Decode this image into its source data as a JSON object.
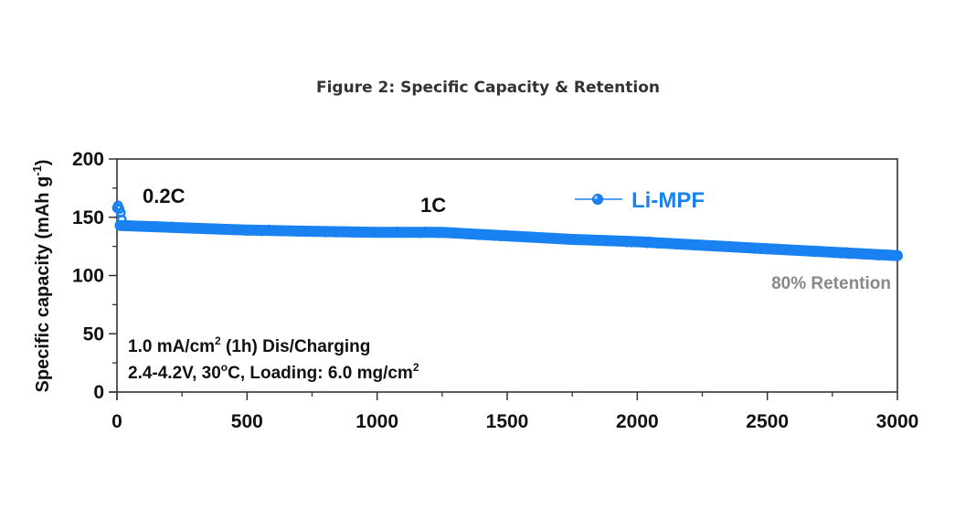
{
  "figure": {
    "title": "Figure 2: Specific Capacity & Retention"
  },
  "chart_data": {
    "type": "scatter",
    "title": "Figure 2: Specific Capacity & Retention",
    "xlabel": "",
    "ylabel_main": "Specific capacity (mAh g",
    "ylabel_sup": "-1",
    "ylabel_close": ")",
    "xlim": [
      0,
      3000
    ],
    "ylim": [
      0,
      200
    ],
    "x_ticks": [
      0,
      500,
      1000,
      1500,
      2000,
      2500,
      3000
    ],
    "x_tick_labels": [
      "0",
      "500",
      "1000",
      "1500",
      "2000",
      "2500",
      "3000"
    ],
    "y_ticks": [
      0,
      50,
      100,
      150,
      200
    ],
    "y_tick_labels": [
      "0",
      "50",
      "100",
      "150",
      "200"
    ],
    "grid": false,
    "legend": {
      "position": "top-right",
      "entries": [
        "Li-MPF"
      ]
    },
    "series": [
      {
        "name": "Li-MPF",
        "color": "#1a82f0",
        "initial_cycles": [
          {
            "x": 0,
            "y": 158
          },
          {
            "x": 2,
            "y": 160
          },
          {
            "x": 5,
            "y": 157
          },
          {
            "x": 8,
            "y": 154
          },
          {
            "x": 10,
            "y": 148
          }
        ],
        "trend": [
          {
            "x": 12,
            "y": 143
          },
          {
            "x": 250,
            "y": 141
          },
          {
            "x": 500,
            "y": 139
          },
          {
            "x": 750,
            "y": 138
          },
          {
            "x": 1000,
            "y": 137
          },
          {
            "x": 1250,
            "y": 137
          },
          {
            "x": 1500,
            "y": 134
          },
          {
            "x": 1750,
            "y": 131
          },
          {
            "x": 2000,
            "y": 129
          },
          {
            "x": 2250,
            "y": 126
          },
          {
            "x": 2500,
            "y": 123
          },
          {
            "x": 2750,
            "y": 120
          },
          {
            "x": 3000,
            "y": 117
          }
        ]
      }
    ],
    "annotations": {
      "rate_initial": "0.2C",
      "rate_main": "1C",
      "retention": "80% Retention",
      "cond_line1_a": "1.0 mA/cm",
      "cond_line1_sup": "2",
      "cond_line1_b": " (1h) Dis/Charging",
      "cond_line2_a": "2.4-4.2V, 30",
      "cond_line2_deg": "o",
      "cond_line2_b": "C, Loading: 6.0 mg/cm",
      "cond_line2_sup": "2"
    },
    "colors": {
      "series": "#1a82f0",
      "retention_text": "#888888",
      "axis": "#333333"
    }
  }
}
